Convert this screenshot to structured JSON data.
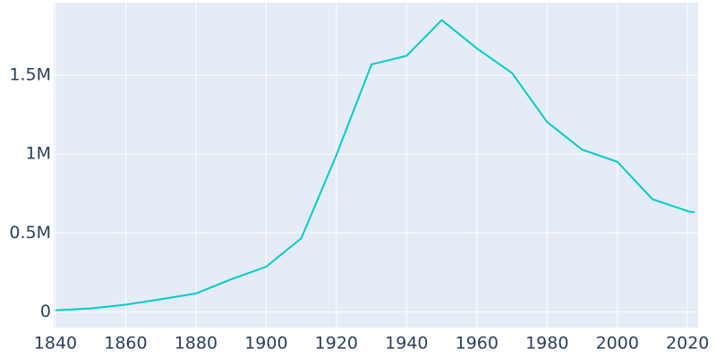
{
  "chart_data": {
    "type": "line",
    "x": [
      1840,
      1850,
      1860,
      1870,
      1880,
      1890,
      1900,
      1910,
      1920,
      1930,
      1940,
      1950,
      1960,
      1970,
      1980,
      1990,
      2000,
      2010,
      2020,
      2021,
      2022
    ],
    "series": [
      {
        "color": "#00cccc",
        "values": [
          9102,
          21019,
          45619,
          79577,
          116340,
          205876,
          285704,
          465766,
          993678,
          1568662,
          1623452,
          1849568,
          1670144,
          1514063,
          1203368,
          1027974,
          951270,
          713777,
          639111,
          632464,
          632464
        ]
      }
    ],
    "xlim": [
      1839.5,
      2023
    ],
    "xticks": [
      1840,
      1860,
      1880,
      1900,
      1920,
      1940,
      1960,
      1980,
      2000,
      2020
    ],
    "ylim": [
      -100000,
      1960000
    ],
    "yticks": [
      0,
      {
        "value": 500000,
        "label": "0.5M"
      },
      {
        "value": 1000000,
        "label": "1M"
      },
      {
        "value": 1500000,
        "label": "1.5M"
      }
    ],
    "grid": true,
    "background": "#e5ecf6"
  }
}
